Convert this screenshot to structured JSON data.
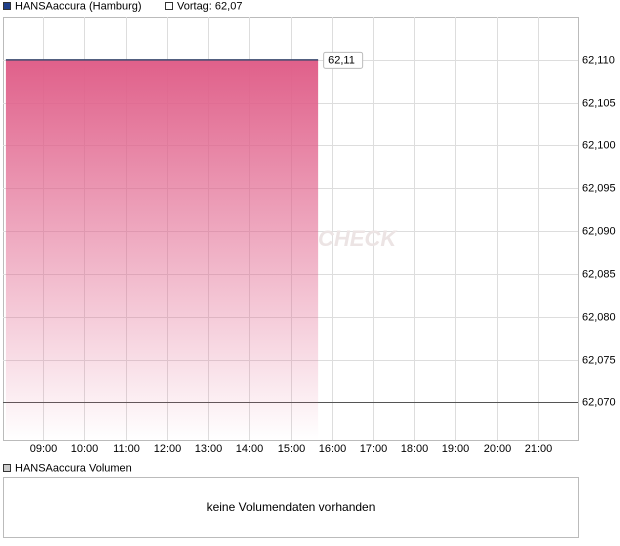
{
  "chart_data": {
    "type": "area",
    "watermark": "CHECK",
    "series": [
      {
        "name": "HANSAaccura (Hamburg)",
        "color": "#1f3f8a",
        "line_color": "#3a4a6e",
        "fill_color": "#e0608a",
        "x": [
          8.1,
          15.67
        ],
        "values": [
          62.11,
          62.11
        ],
        "value_labels": [
          null,
          "62,11"
        ]
      }
    ],
    "reference_line": {
      "label": "Vortag: 62,07",
      "value": 62.07,
      "color": "#555555"
    },
    "xlim": [
      8.03,
      21.97
    ],
    "xticks": [
      {
        "value": 9,
        "label": "09:00"
      },
      {
        "value": 10,
        "label": "10:00"
      },
      {
        "value": 11,
        "label": "11:00"
      },
      {
        "value": 12,
        "label": "12:00"
      },
      {
        "value": 13,
        "label": "13:00"
      },
      {
        "value": 14,
        "label": "14:00"
      },
      {
        "value": 15,
        "label": "15:00"
      },
      {
        "value": 16,
        "label": "16:00"
      },
      {
        "value": 17,
        "label": "17:00"
      },
      {
        "value": 18,
        "label": "18:00"
      },
      {
        "value": 19,
        "label": "19:00"
      },
      {
        "value": 20,
        "label": "20:00"
      },
      {
        "value": 21,
        "label": "21:00"
      }
    ],
    "ylim": [
      62.0656,
      62.115
    ],
    "yticks": [
      {
        "value": 62.07,
        "label": "62,070"
      },
      {
        "value": 62.075,
        "label": "62,075"
      },
      {
        "value": 62.08,
        "label": "62,080"
      },
      {
        "value": 62.085,
        "label": "62,085"
      },
      {
        "value": 62.09,
        "label": "62,090"
      },
      {
        "value": 62.095,
        "label": "62,095"
      },
      {
        "value": 62.1,
        "label": "62,100"
      },
      {
        "value": 62.105,
        "label": "62,105"
      },
      {
        "value": 62.11,
        "label": "62,110"
      }
    ],
    "grid": true
  },
  "volume": {
    "title": "HANSAaccura Volumen",
    "message": "keine Volumendaten vorhanden"
  }
}
